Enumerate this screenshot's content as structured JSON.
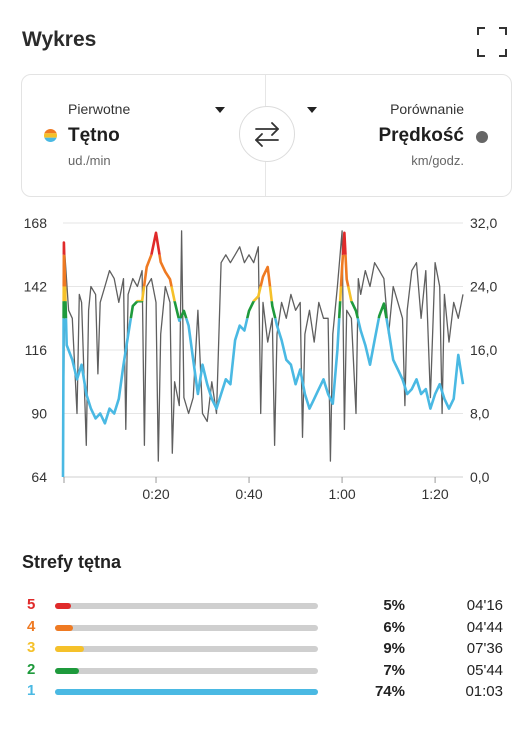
{
  "header": {
    "title": "Wykres"
  },
  "icons": {
    "fullscreen": "fullscreen-corners-icon",
    "swap": "swap-arrows-icon",
    "caret": "caret-down-icon"
  },
  "primary": {
    "label": "Pierwotne",
    "metric": "Tętno",
    "unit": "ud./min"
  },
  "comparison": {
    "label": "Porównanie",
    "metric": "Prędkość",
    "unit": "km/godz."
  },
  "colors": {
    "zone5": "#e02a2a",
    "zone4": "#ef7a22",
    "zone3": "#f5c12a",
    "zone2": "#1e9a3c",
    "zone1": "#4ab9e3",
    "speed_line": "#5f5f5f",
    "grid": "#e6e6e6"
  },
  "chart_data": {
    "type": "line",
    "x_tick_labels": [
      "0:20",
      "0:40",
      "1:00",
      "1:20"
    ],
    "x_ticks_min": [
      20,
      40,
      60,
      80
    ],
    "x_range_min": [
      0,
      86
    ],
    "y_left": {
      "ticks": [
        "168",
        "142",
        "116",
        "90",
        "64"
      ],
      "range": [
        64,
        168
      ]
    },
    "y_right": {
      "ticks": [
        "32,0",
        "24,0",
        "16,0",
        "8,0",
        "0,0"
      ],
      "range": [
        0,
        32
      ]
    },
    "zone_bounds": [
      129,
      136,
      142,
      155
    ],
    "grid": true,
    "series": [
      {
        "id": "heart_rate",
        "axis": "left",
        "points": [
          [
            0,
            64
          ],
          [
            0.2,
            160
          ],
          [
            0.8,
            118
          ],
          [
            2,
            112
          ],
          [
            3,
            104
          ],
          [
            4,
            110
          ],
          [
            5,
            98
          ],
          [
            6,
            92
          ],
          [
            7,
            88
          ],
          [
            8,
            90
          ],
          [
            9,
            86
          ],
          [
            10,
            92
          ],
          [
            11,
            90
          ],
          [
            12,
            96
          ],
          [
            13,
            110
          ],
          [
            14,
            122
          ],
          [
            15,
            134
          ],
          [
            16,
            136
          ],
          [
            17,
            136
          ],
          [
            18,
            150
          ],
          [
            19,
            155
          ],
          [
            20,
            164
          ],
          [
            21,
            152
          ],
          [
            22,
            148
          ],
          [
            23,
            145
          ],
          [
            24,
            136
          ],
          [
            25,
            128
          ],
          [
            26,
            132
          ],
          [
            27,
            126
          ],
          [
            28,
            112
          ],
          [
            29,
            98
          ],
          [
            30,
            110
          ],
          [
            31,
            102
          ],
          [
            32,
            96
          ],
          [
            33,
            92
          ],
          [
            34,
            98
          ],
          [
            35,
            104
          ],
          [
            36,
            102
          ],
          [
            37,
            120
          ],
          [
            38,
            126
          ],
          [
            39,
            124
          ],
          [
            40,
            132
          ],
          [
            41,
            136
          ],
          [
            42,
            138
          ],
          [
            43,
            146
          ],
          [
            44,
            150
          ],
          [
            45,
            134
          ],
          [
            46,
            126
          ],
          [
            47,
            120
          ],
          [
            48,
            112
          ],
          [
            49,
            110
          ],
          [
            50,
            102
          ],
          [
            51,
            108
          ],
          [
            52,
            98
          ],
          [
            53,
            92
          ],
          [
            54,
            96
          ],
          [
            55,
            100
          ],
          [
            56,
            104
          ],
          [
            57,
            98
          ],
          [
            58,
            94
          ],
          [
            59,
            116
          ],
          [
            60,
            150
          ],
          [
            60.5,
            164
          ],
          [
            61,
            145
          ],
          [
            62,
            136
          ],
          [
            63,
            132
          ],
          [
            64,
            124
          ],
          [
            65,
            118
          ],
          [
            66,
            110
          ],
          [
            67,
            120
          ],
          [
            68,
            130
          ],
          [
            69,
            135
          ],
          [
            70,
            124
          ],
          [
            71,
            112
          ],
          [
            72,
            108
          ],
          [
            73,
            104
          ],
          [
            74,
            98
          ],
          [
            75,
            100
          ],
          [
            76,
            104
          ],
          [
            77,
            98
          ],
          [
            78,
            100
          ],
          [
            79,
            92
          ],
          [
            80,
            98
          ],
          [
            81,
            102
          ],
          [
            82,
            96
          ],
          [
            83,
            92
          ],
          [
            84,
            96
          ],
          [
            85,
            114
          ],
          [
            86,
            102
          ]
        ]
      },
      {
        "id": "speed",
        "axis": "right",
        "points": [
          [
            0,
            0
          ],
          [
            0.4,
            28
          ],
          [
            1.2,
            21
          ],
          [
            2,
            20
          ],
          [
            3,
            8
          ],
          [
            3.5,
            23
          ],
          [
            4,
            22
          ],
          [
            5,
            4
          ],
          [
            5.5,
            21
          ],
          [
            6,
            24
          ],
          [
            7,
            23
          ],
          [
            7.5,
            13
          ],
          [
            8,
            22
          ],
          [
            9,
            24
          ],
          [
            10,
            26
          ],
          [
            11,
            25
          ],
          [
            12,
            22
          ],
          [
            13,
            25
          ],
          [
            13.5,
            6
          ],
          [
            14,
            23
          ],
          [
            15,
            25
          ],
          [
            16,
            24
          ],
          [
            17,
            26
          ],
          [
            17.5,
            4
          ],
          [
            18,
            24
          ],
          [
            19,
            25
          ],
          [
            20,
            22
          ],
          [
            20.5,
            2
          ],
          [
            21,
            18
          ],
          [
            22,
            24
          ],
          [
            23,
            22
          ],
          [
            23.5,
            3
          ],
          [
            24,
            12
          ],
          [
            25,
            9
          ],
          [
            25.5,
            31
          ],
          [
            26,
            10
          ],
          [
            27,
            8
          ],
          [
            28,
            10
          ],
          [
            29,
            21
          ],
          [
            30,
            8
          ],
          [
            31,
            7
          ],
          [
            32,
            12
          ],
          [
            33,
            8
          ],
          [
            34,
            27
          ],
          [
            35,
            28
          ],
          [
            36,
            27
          ],
          [
            37,
            28
          ],
          [
            38,
            29
          ],
          [
            39,
            27
          ],
          [
            40,
            28
          ],
          [
            41,
            27
          ],
          [
            42,
            29
          ],
          [
            42.5,
            8
          ],
          [
            43,
            22
          ],
          [
            44,
            17
          ],
          [
            45,
            20
          ],
          [
            45.5,
            4
          ],
          [
            46,
            18
          ],
          [
            47,
            22
          ],
          [
            48,
            20
          ],
          [
            49,
            23
          ],
          [
            50,
            21
          ],
          [
            51,
            22
          ],
          [
            51.5,
            5
          ],
          [
            52,
            18
          ],
          [
            53,
            21
          ],
          [
            54,
            17
          ],
          [
            55,
            22
          ],
          [
            56,
            20
          ],
          [
            57,
            20
          ],
          [
            57.5,
            2
          ],
          [
            58,
            18
          ],
          [
            59,
            24
          ],
          [
            60,
            31
          ],
          [
            60.5,
            6
          ],
          [
            61,
            21
          ],
          [
            62,
            20
          ],
          [
            63,
            8
          ],
          [
            63.5,
            25
          ],
          [
            64,
            23
          ],
          [
            65,
            26
          ],
          [
            66,
            24
          ],
          [
            67,
            27
          ],
          [
            68,
            26
          ],
          [
            69,
            25
          ],
          [
            70,
            18
          ],
          [
            71,
            24
          ],
          [
            72,
            22
          ],
          [
            73,
            20
          ],
          [
            73.5,
            9
          ],
          [
            74,
            21
          ],
          [
            75,
            26
          ],
          [
            76,
            27
          ],
          [
            77,
            20
          ],
          [
            78,
            26
          ],
          [
            79,
            10
          ],
          [
            80,
            27
          ],
          [
            81,
            24
          ],
          [
            81.5,
            8
          ],
          [
            82,
            23
          ],
          [
            83,
            17
          ],
          [
            84,
            22
          ],
          [
            85,
            20
          ],
          [
            86,
            23
          ]
        ]
      }
    ]
  },
  "zones": {
    "title": "Strefy tętna",
    "items": [
      {
        "num": "5",
        "pct_text": "5%",
        "time": "04'16",
        "fill": 0.06,
        "color": "#e02a2a"
      },
      {
        "num": "4",
        "pct_text": "6%",
        "time": "04'44",
        "fill": 0.07,
        "color": "#ef7a22"
      },
      {
        "num": "3",
        "pct_text": "9%",
        "time": "07'36",
        "fill": 0.11,
        "color": "#f5c12a"
      },
      {
        "num": "2",
        "pct_text": "7%",
        "time": "05'44",
        "fill": 0.09,
        "color": "#1e9a3c"
      },
      {
        "num": "1",
        "pct_text": "74%",
        "time": "01:03",
        "fill": 1.0,
        "color": "#4ab9e3"
      }
    ]
  }
}
